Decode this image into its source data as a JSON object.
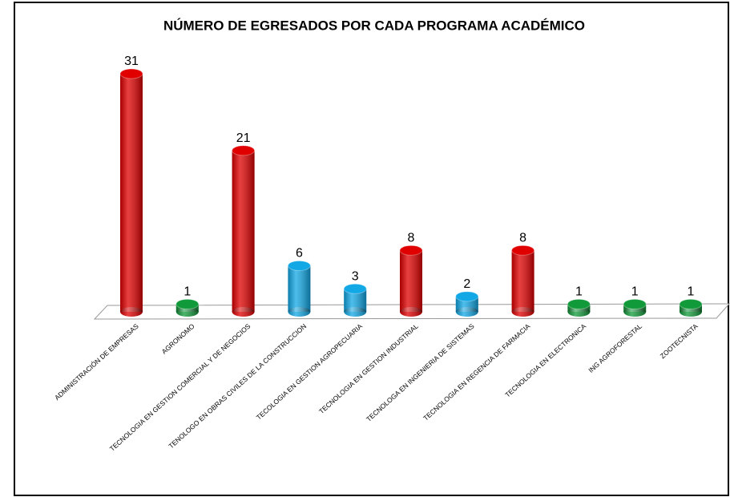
{
  "chart_data": {
    "type": "bar",
    "title": "NÚMERO DE EGRESADOS POR CADA PROGRAMA ACADÉMICO",
    "categories": [
      "ADMINISTRACIÓN DE EMPRESAS",
      "AGRONOMO",
      "TECNOLOGIA EN GESTION COMERCIAL Y DE NEGOCIOS",
      "TENOLOGO EN OBRAS CIVILES DE LA CONSTRUCCION",
      "TECOLOGIA EN GESTION AGROPECUARIA",
      "TECNOLOGIA EN GESTION INDUSTRIAL",
      "TECNOLOGA EN INGENIERIA DE SISTEMAS",
      "TECNOLOGIA EN REGENCIA DE FARMACIA",
      "TECNOLOGIA EN ELECTRONICA",
      "ING AGROFORESTAL",
      "ZOOTECNISTA"
    ],
    "values": [
      31,
      1,
      21,
      6,
      3,
      8,
      2,
      8,
      1,
      1,
      1
    ],
    "colors": [
      "#e00000",
      "#119a3a",
      "#e00000",
      "#12a8e6",
      "#12a8e6",
      "#e00000",
      "#12a8e6",
      "#e00000",
      "#119a3a",
      "#119a3a",
      "#119a3a"
    ]
  }
}
